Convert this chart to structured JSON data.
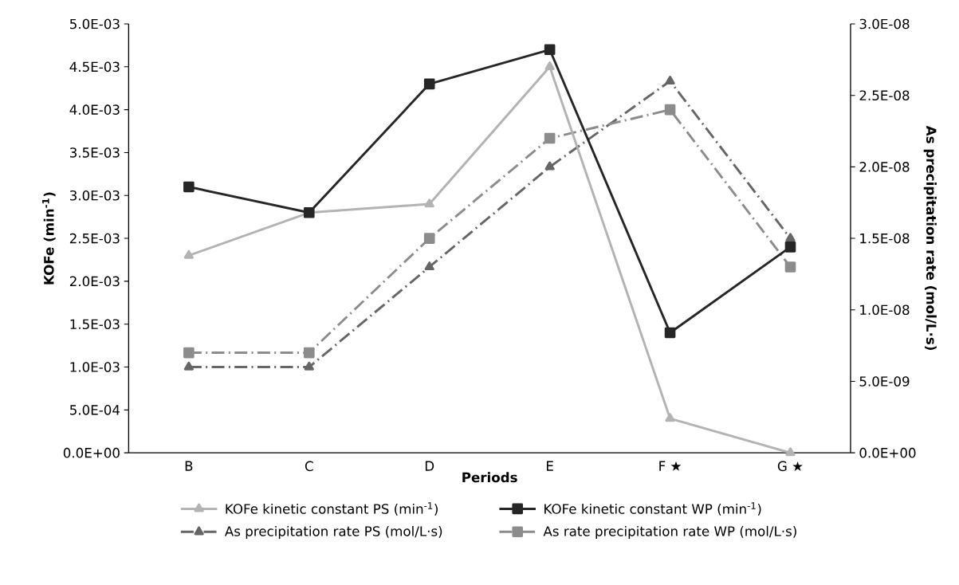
{
  "chart_data": {
    "type": "line",
    "xlabel": "Periods",
    "ylabel": "KOFe (min$^{-1}$)",
    "y2label": "As precipitation rate (mol/L·s)",
    "categories": [
      "B",
      "C",
      "D",
      "E",
      "F ★",
      "G ★"
    ],
    "series": [
      {
        "name": "KOFe kinetic constant PS (min$^{-1}$)",
        "color": "#b3b3b3",
        "marker": "triangle",
        "line_style": "solid",
        "values": [
          0.0023,
          0.0028,
          0.0029,
          0.0045,
          0.0004,
          0.0
        ]
      },
      {
        "name": "KOFe kinetic constant WP (min$^{-1}$)",
        "color": "#262626",
        "marker": "square",
        "line_style": "solid",
        "values": [
          0.0031,
          0.0028,
          0.0043,
          0.0047,
          0.0014,
          0.0024
        ]
      },
      {
        "name": "As precipitation rate PS (mol/L·s)",
        "color": "#666666",
        "marker": "triangle",
        "line_style": "dashdot",
        "axis": "y2",
        "values": [
          6e-09,
          6e-09,
          1.3e-08,
          2e-08,
          2.6e-08,
          1.5e-08
        ]
      },
      {
        "name": "As rate precipitation rate WP (mol/L·s)",
        "color": "#8c8c8c",
        "marker": "square",
        "line_style": "dashdot",
        "axis": "y2",
        "values": [
          7e-09,
          7e-09,
          1.5e-08,
          2.2e-08,
          2.4e-08,
          1.3e-08
        ]
      }
    ],
    "ylim": [
      0,
      0.005
    ],
    "yticks": [
      {
        "value": 0,
        "label": "0.0E+00"
      },
      {
        "value": 0.0005,
        "label": "5.0E-04"
      },
      {
        "value": 0.001,
        "label": "1.0E-03"
      },
      {
        "value": 0.0015,
        "label": "1.5E-03"
      },
      {
        "value": 0.002,
        "label": "2.0E-03"
      },
      {
        "value": 0.0025,
        "label": "2.5E-03"
      },
      {
        "value": 0.003,
        "label": "3.0E-03"
      },
      {
        "value": 0.0035,
        "label": "3.5E-03"
      },
      {
        "value": 0.004,
        "label": "4.0E-03"
      },
      {
        "value": 0.0045,
        "label": "4.5E-03"
      },
      {
        "value": 0.005,
        "label": "5.0E-03"
      }
    ],
    "y2lim": [
      0,
      3e-08
    ],
    "y2ticks": [
      {
        "value": 0,
        "label": "0.0E+00"
      },
      {
        "value": 5e-09,
        "label": "5.0E-09"
      },
      {
        "value": 1e-08,
        "label": "1.0E-08"
      },
      {
        "value": 1.5e-08,
        "label": "1.5E-08"
      },
      {
        "value": 2e-08,
        "label": "2.0E-08"
      },
      {
        "value": 2.5e-08,
        "label": "2.5E-08"
      },
      {
        "value": 3e-08,
        "label": "3.0E-08"
      }
    ],
    "grid": false,
    "legend": "bottom"
  }
}
